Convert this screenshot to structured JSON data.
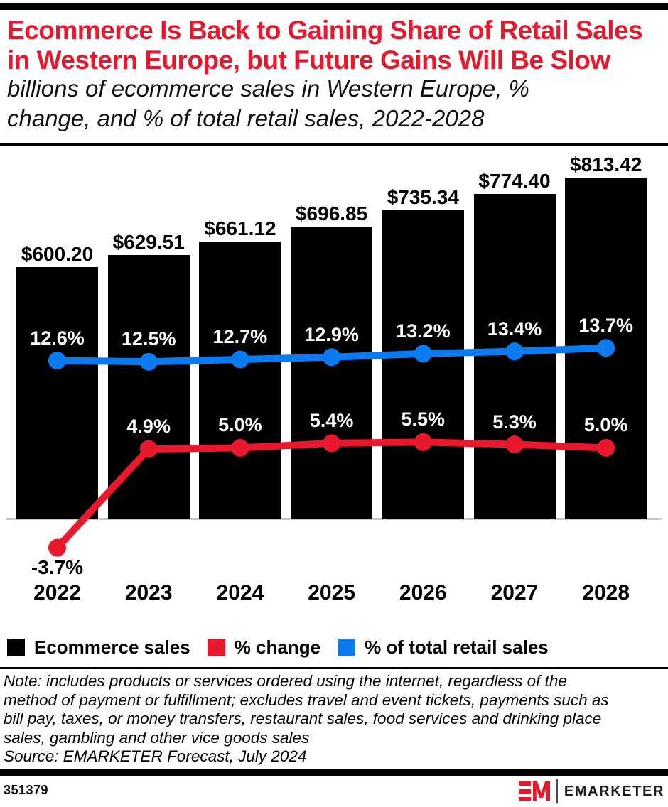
{
  "colors": {
    "red": "#e8192c",
    "blue": "#0d7bf0",
    "black": "#000000",
    "axis_gray": "#c9c9c9",
    "title_red": "#e5192d"
  },
  "header": {
    "title_lines": [
      "Ecommerce Is Back to Gaining Share of Retail Sales",
      "in Western Europe, but Future Gains Will Be Slow"
    ],
    "subtitle_lines": [
      "billions of ecommerce sales in Western Europe, %",
      "change, and % of total retail sales, 2022-2028"
    ]
  },
  "chart_data": {
    "type": "bar+line",
    "categories": [
      "2022",
      "2023",
      "2024",
      "2025",
      "2026",
      "2027",
      "2028"
    ],
    "series": [
      {
        "name": "Ecommerce sales",
        "type": "bar",
        "unit": "billions of US dollars",
        "color": "#000000",
        "values": [
          600.2,
          629.51,
          661.12,
          696.85,
          735.34,
          774.4,
          813.42
        ],
        "labels": [
          "$600.20",
          "$629.51",
          "$661.12",
          "$696.85",
          "$735.34",
          "$774.40",
          "$813.42"
        ]
      },
      {
        "name": "% change",
        "type": "line",
        "unit": "%",
        "color": "#e8192c",
        "values": [
          -3.7,
          4.9,
          5.0,
          5.4,
          5.5,
          5.3,
          5.0
        ],
        "labels": [
          "-3.7%",
          "4.9%",
          "5.0%",
          "5.4%",
          "5.5%",
          "5.3%",
          "5.0%"
        ]
      },
      {
        "name": "% of total retail sales",
        "type": "line",
        "unit": "%",
        "color": "#0d7bf0",
        "values": [
          12.6,
          12.5,
          12.7,
          12.9,
          13.2,
          13.4,
          13.7
        ],
        "labels": [
          "12.6%",
          "12.5%",
          "12.7%",
          "12.9%",
          "13.2%",
          "13.4%",
          "13.7%"
        ]
      }
    ],
    "legend_position": "bottom",
    "grid": false
  },
  "legend": {
    "items": [
      {
        "label": "Ecommerce sales",
        "color": "#000000"
      },
      {
        "label": "% change",
        "color": "#e8192c"
      },
      {
        "label": "% of total retail sales",
        "color": "#0d7bf0"
      }
    ]
  },
  "footnote": {
    "note_lines": [
      "Note: includes products or services ordered using the internet, regardless of the",
      "method of payment or fulfillment; excludes travel and event tickets, payments such as",
      "bill pay, taxes, or money transfers, restaurant sales, food services and drinking place",
      "sales, gambling and other vice goods sales"
    ],
    "source_line": "Source: EMARKETER Forecast, July 2024"
  },
  "footer": {
    "chart_id": "351379",
    "brand": "EMARKETER",
    "logo_monogram": "EM"
  }
}
